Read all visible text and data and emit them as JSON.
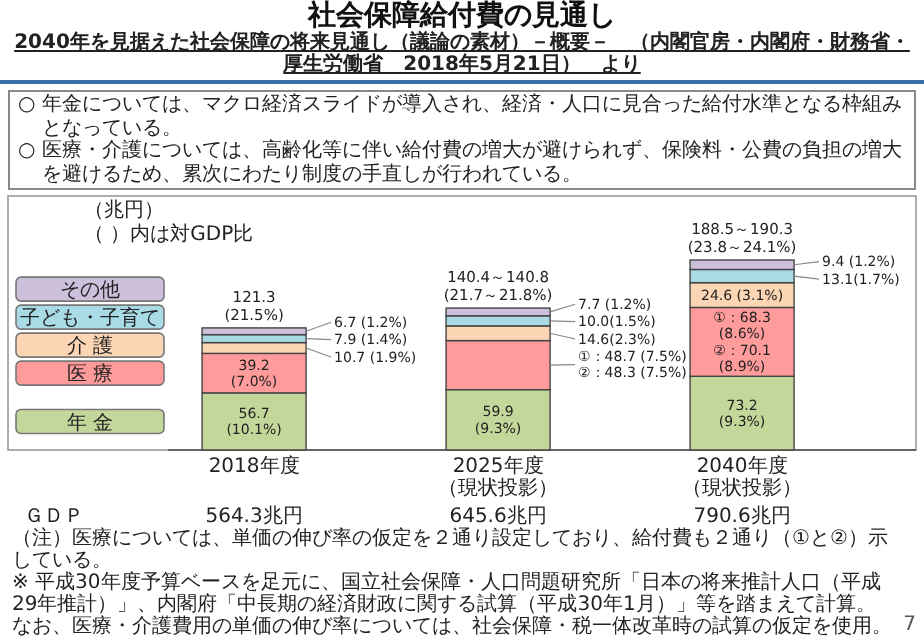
{
  "chart_data": {
    "type": "bar",
    "stacked": true,
    "legend": "left",
    "title": "社会保障給付費の見通し",
    "subtitle": "2040年を見据えた社会保障の将来見通し（議論の素材）－概要－　（内閣官房・内閣府・財務省・厚生労働省　2018年5月21日）　より",
    "ylabel": "（兆円）",
    "categories": [
      "2018年度",
      "2025年度（現状投影）",
      "2040年度（現状投影）"
    ],
    "series": [
      {
        "name": "年 金",
        "color": "#c4d79b",
        "values": [
          56.7,
          59.9,
          73.2
        ],
        "value_labels": [
          "56.7\n(10.1%)",
          "59.9\n(9.3%)",
          "73.2\n(9.3%)"
        ]
      },
      {
        "name": "医 療",
        "color": "#ff9b9b",
        "values": [
          39.2,
          48.7,
          68.3
        ],
        "value_labels": [
          "39.2\n(7.0%)",
          "①：48.7\n(7.5%)\n②：48.3\n(7.5%)",
          "①：68.3\n(8.6%)\n②：70.1\n(8.9%)"
        ]
      },
      {
        "name": "介 護",
        "color": "#fcd5b4",
        "values": [
          10.7,
          14.6,
          24.6
        ],
        "value_labels": [
          "10.7 (1.9%)",
          "14.6(2.3%)",
          "24.6\n(3.1%)"
        ]
      },
      {
        "name": "子ども・子育て",
        "color": "#a9dbe6",
        "values": [
          7.9,
          10.0,
          13.1
        ],
        "value_labels": [
          "7.9 (1.4%)",
          "10.0(1.5%)",
          "13.1(1.7%)"
        ]
      },
      {
        "name": "その他",
        "color": "#ccc0da",
        "values": [
          6.7,
          7.7,
          9.4
        ],
        "value_labels": [
          "6.7 (1.2%)",
          "7.7 (1.2%)",
          "9.4 (1.2%)"
        ]
      }
    ],
    "totals": [
      "121.3\n(21.5%)",
      "140.4～140.8\n(21.7～21.8%)",
      "188.5～190.3\n(23.8～24.1%)"
    ],
    "annotations": [
      "○ 年金については、マクロ経済スライドが導入され、経済・人口に見合った給付水準となる枠組みとなっている。",
      "○ 医療・介護については、高齢化等に伴い給付費の増大が避けられず、保険料・公費の負担の増大を避けるため、累次にわたり制度の手直しが行われている。",
      "（ ）内は対GDP比",
      "ＧＤＰ",
      "564.3兆円",
      "645.6兆円",
      "790.6兆円",
      "（注）医療については、単価の伸び率の仮定を２通り設定しており、給付費も２通り（①と②）示している。",
      "※ 平成30年度予算ベースを足元に、国立社会保障・人口問題研究所「日本の将来推計人口（平成29年推計）」、内閣府「中長期の経済財政に関する試算（平成30年1月）」等を踏まえて計算。なお、医療・介護費用の単価の伸び率については、社会保障・税一体改革時の試算の仮定を使用。",
      "7"
    ]
  }
}
